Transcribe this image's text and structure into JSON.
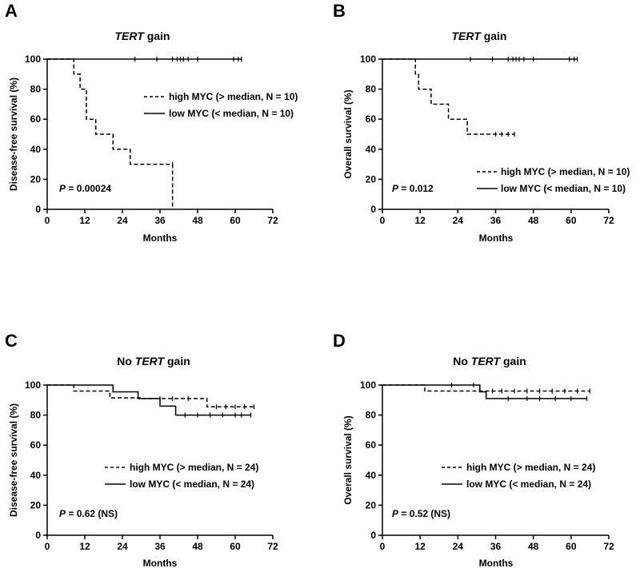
{
  "chart_data": [
    {
      "panel": "A",
      "type": "line",
      "title_italic": "TERT",
      "title_rest": " gain",
      "title_prefix": "",
      "xlabel": "Months",
      "ylabel": "Disease-free survival (%)",
      "xlim": [
        0,
        72
      ],
      "ylim": [
        0,
        100
      ],
      "xticks": [
        "0",
        "12",
        "24",
        "36",
        "48",
        "60",
        "72"
      ],
      "yticks": [
        "0",
        "20",
        "40",
        "60",
        "80",
        "100"
      ],
      "p_label": "P",
      "p_value": " = 0.00024",
      "legend_position": "middle-right",
      "series": [
        {
          "name": "high MYC (> median, N = 10)",
          "style": "dashed",
          "steps": [
            [
              0,
              100
            ],
            [
              8.5,
              90
            ],
            [
              10.5,
              80
            ],
            [
              12.5,
              60
            ],
            [
              15.5,
              50
            ],
            [
              21,
              40
            ],
            [
              26.5,
              30
            ],
            [
              40,
              0
            ]
          ],
          "end": 40,
          "censored": [
            [
              40,
              30
            ]
          ]
        },
        {
          "name": "low MYC  (< median, N = 10)",
          "style": "solid",
          "steps": [
            [
              0,
              100
            ]
          ],
          "end": 62,
          "censored": [
            [
              28,
              100
            ],
            [
              35,
              100
            ],
            [
              40,
              100
            ],
            [
              41.5,
              100
            ],
            [
              42.5,
              100
            ],
            [
              43.5,
              100
            ],
            [
              45,
              100
            ],
            [
              48,
              100
            ],
            [
              59.5,
              100
            ],
            [
              61,
              100
            ],
            [
              62,
              100
            ]
          ]
        }
      ]
    },
    {
      "panel": "B",
      "type": "line",
      "title_italic": "TERT",
      "title_rest": " gain",
      "title_prefix": "",
      "xlabel": "Months",
      "ylabel": "Overall survival (%)",
      "xlim": [
        0,
        72
      ],
      "ylim": [
        0,
        100
      ],
      "xticks": [
        "0",
        "12",
        "24",
        "36",
        "48",
        "60",
        "72"
      ],
      "yticks": [
        "0",
        "20",
        "40",
        "60",
        "80",
        "100"
      ],
      "p_label": "P",
      "p_value": " = 0.012",
      "legend_position": "bottom-right",
      "series": [
        {
          "name": "high MYC (> median, N = 10)",
          "style": "dashed",
          "steps": [
            [
              0,
              100
            ],
            [
              10.5,
              90
            ],
            [
              11.5,
              80
            ],
            [
              15.5,
              70
            ],
            [
              21,
              60
            ],
            [
              27,
              50
            ]
          ],
          "end": 42,
          "censored": [
            [
              36,
              50
            ],
            [
              38,
              50
            ],
            [
              40,
              50
            ],
            [
              42,
              50
            ]
          ]
        },
        {
          "name": "low MYC  (< median, N = 10)",
          "style": "solid",
          "steps": [
            [
              0,
              100
            ]
          ],
          "end": 62,
          "censored": [
            [
              28,
              100
            ],
            [
              35,
              100
            ],
            [
              40,
              100
            ],
            [
              41.5,
              100
            ],
            [
              42.5,
              100
            ],
            [
              43.5,
              100
            ],
            [
              45,
              100
            ],
            [
              48,
              100
            ],
            [
              59.5,
              100
            ],
            [
              61,
              100
            ],
            [
              62,
              100
            ]
          ]
        }
      ]
    },
    {
      "panel": "C",
      "type": "line",
      "title_italic": "TERT",
      "title_rest": " gain",
      "title_prefix": "No ",
      "xlabel": "Months",
      "ylabel": "Disease-free survival (%)",
      "xlim": [
        0,
        72
      ],
      "ylim": [
        0,
        100
      ],
      "xticks": [
        "0",
        "12",
        "24",
        "36",
        "48",
        "60",
        "72"
      ],
      "yticks": [
        "0",
        "20",
        "40",
        "60",
        "80",
        "100"
      ],
      "p_label": "P",
      "p_value": " = 0.62 (NS)",
      "legend_position": "lower-right",
      "series": [
        {
          "name": "high MYC (> median, N = 24)",
          "style": "dashed",
          "steps": [
            [
              0,
              100
            ],
            [
              8.5,
              96
            ],
            [
              20,
              91.5
            ],
            [
              30,
              91
            ],
            [
              51,
              85.5
            ]
          ],
          "end": 66,
          "censored": [
            [
              36,
              91
            ],
            [
              40,
              91
            ],
            [
              45,
              91
            ],
            [
              54,
              85.5
            ],
            [
              57,
              85.5
            ],
            [
              60,
              85.5
            ],
            [
              63,
              85.5
            ],
            [
              66,
              85.5
            ]
          ]
        },
        {
          "name": "low MYC  (< median, N = 24)",
          "style": "solid",
          "steps": [
            [
              0,
              100
            ],
            [
              21,
              95.5
            ],
            [
              29,
              91
            ],
            [
              36,
              86
            ],
            [
              41,
              80
            ]
          ],
          "end": 65,
          "censored": [
            [
              44,
              80
            ],
            [
              48,
              80
            ],
            [
              52,
              80
            ],
            [
              56,
              80
            ],
            [
              60,
              80
            ],
            [
              62,
              80
            ],
            [
              65,
              80
            ]
          ]
        }
      ]
    },
    {
      "panel": "D",
      "type": "line",
      "title_italic": "TERT",
      "title_rest": " gain",
      "title_prefix": "No ",
      "xlabel": "Months",
      "ylabel": "Overall survival (%)",
      "xlim": [
        0,
        72
      ],
      "ylim": [
        0,
        100
      ],
      "xticks": [
        "0",
        "12",
        "24",
        "36",
        "48",
        "60",
        "72"
      ],
      "yticks": [
        "0",
        "20",
        "40",
        "60",
        "80",
        "100"
      ],
      "p_label": "P",
      "p_value": " = 0.52 (NS)",
      "legend_position": "lower-right",
      "series": [
        {
          "name": "high MYC (> median, N = 24)",
          "style": "dashed",
          "steps": [
            [
              0,
              100
            ],
            [
              13.5,
              96
            ],
            [
              30,
              96
            ]
          ],
          "end": 66,
          "censored": [
            [
              35,
              96
            ],
            [
              38,
              96
            ],
            [
              42,
              96
            ],
            [
              46,
              96
            ],
            [
              50,
              96
            ],
            [
              54,
              96
            ],
            [
              58,
              96
            ],
            [
              62,
              96
            ],
            [
              66,
              96
            ]
          ]
        },
        {
          "name": "low MYC  (< median, N = 24)",
          "style": "solid",
          "steps": [
            [
              0,
              100
            ],
            [
              31,
              95.5
            ],
            [
              33,
              91
            ]
          ],
          "end": 65,
          "censored": [
            [
              22,
              100
            ],
            [
              29,
              100
            ],
            [
              40,
              91
            ],
            [
              46,
              91
            ],
            [
              50,
              91
            ],
            [
              55,
              91
            ],
            [
              60,
              91
            ],
            [
              65,
              91
            ]
          ]
        }
      ]
    }
  ]
}
